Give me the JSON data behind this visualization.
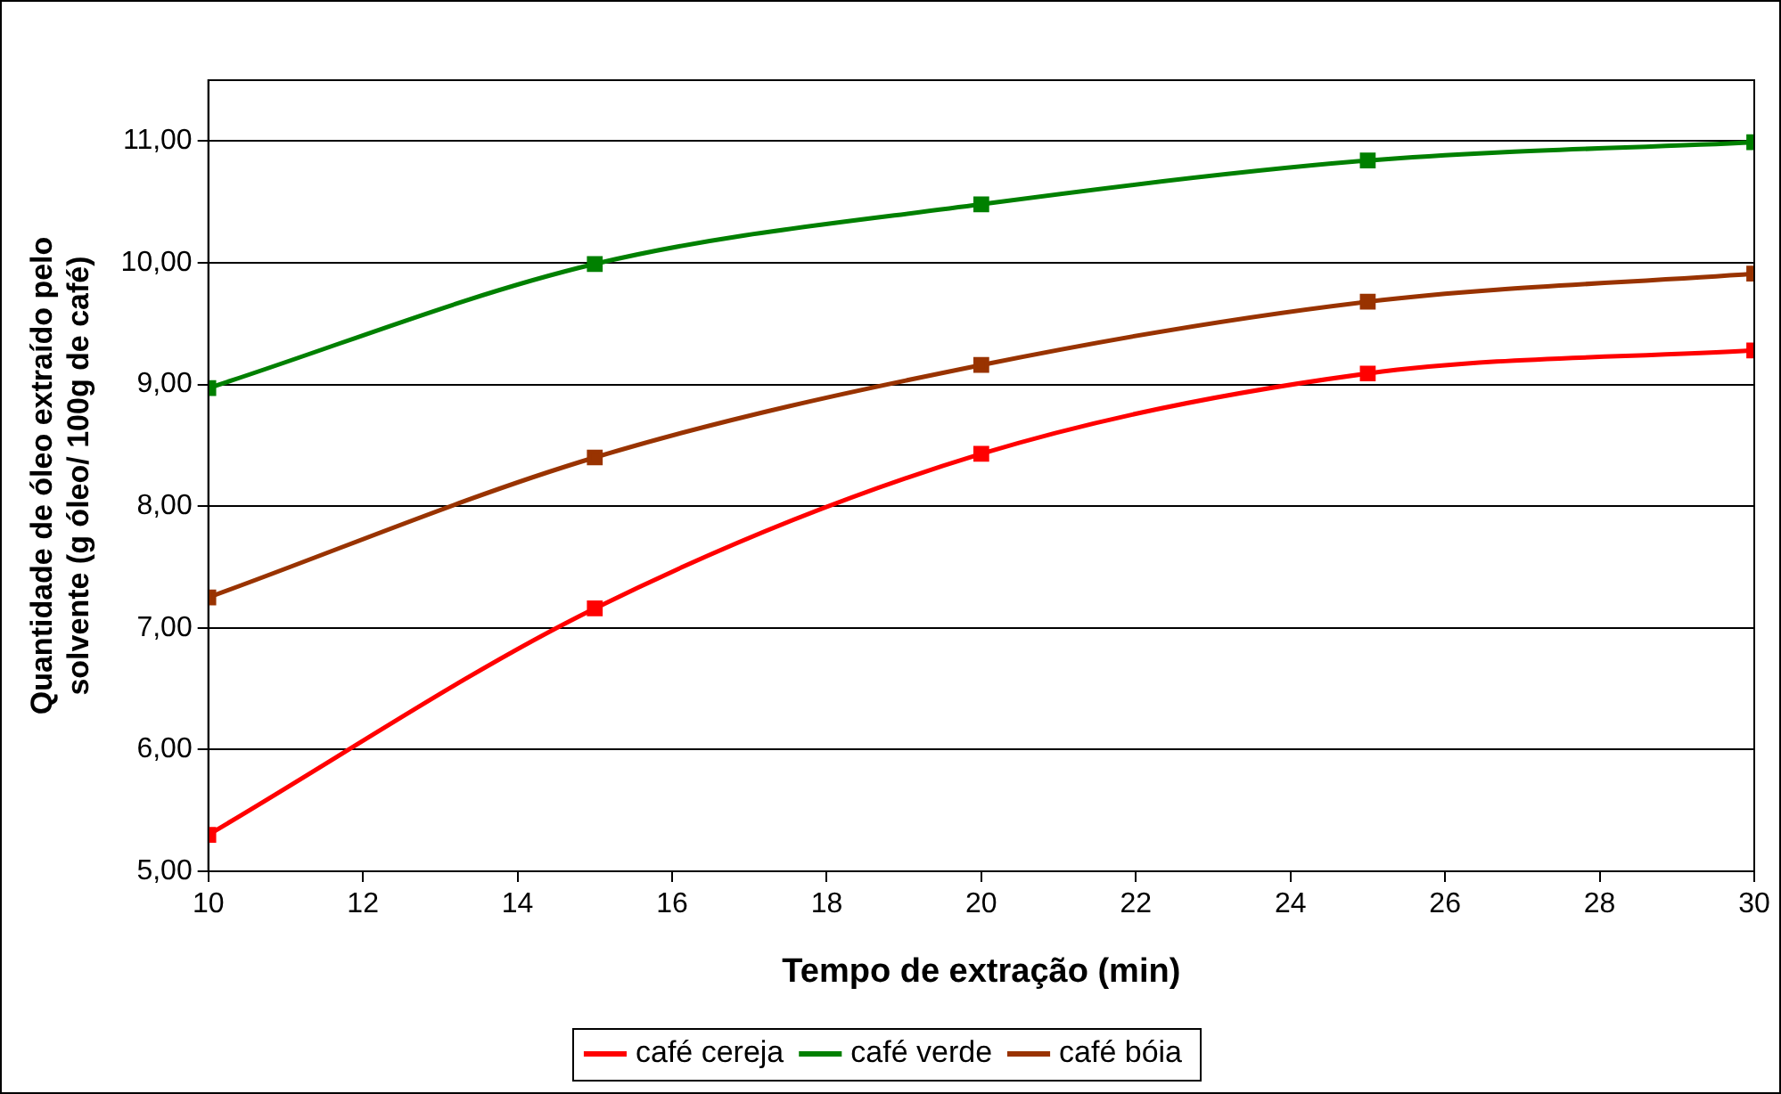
{
  "chart_data": {
    "type": "line",
    "xlabel": "Tempo de extração (min)",
    "ylabel": "Quantidade de óleo extraído pelo\nsolvente (g óleo/ 100g de café)",
    "x": [
      10,
      15,
      20,
      25,
      30
    ],
    "series": [
      {
        "name": "café cereja",
        "color": "#ff0000",
        "values": [
          5.3,
          7.16,
          8.43,
          9.09,
          9.28
        ]
      },
      {
        "name": "café verde",
        "color": "#008000",
        "values": [
          8.97,
          9.99,
          10.48,
          10.84,
          10.99
        ]
      },
      {
        "name": "café bóia",
        "color": "#993300",
        "values": [
          7.25,
          8.4,
          9.16,
          9.68,
          9.91
        ]
      }
    ],
    "xlim": [
      10,
      30
    ],
    "xticks": [
      10,
      12,
      14,
      16,
      18,
      20,
      22,
      24,
      26,
      28,
      30
    ],
    "ylim": [
      5,
      11.5
    ],
    "yticks": [
      {
        "value": 5,
        "label": "5,00"
      },
      {
        "value": 6,
        "label": "6,00"
      },
      {
        "value": 7,
        "label": "7,00"
      },
      {
        "value": 8,
        "label": "8,00"
      },
      {
        "value": 9,
        "label": "9,00"
      },
      {
        "value": 10,
        "label": "10,00"
      },
      {
        "value": 11,
        "label": "11,00"
      }
    ],
    "grid": "y",
    "legend": "bottom",
    "marker": "square",
    "line_style": "solid"
  }
}
